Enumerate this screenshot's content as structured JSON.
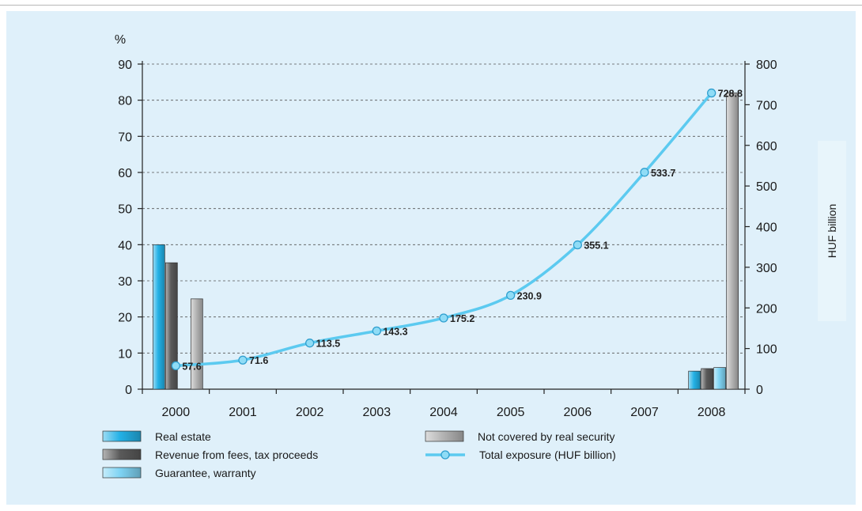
{
  "chart_data": {
    "type": "bar",
    "categories": [
      "2000",
      "2001",
      "2002",
      "2003",
      "2004",
      "2005",
      "2006",
      "2007",
      "2008"
    ],
    "series": [
      {
        "name": "Real estate",
        "axis": "left",
        "color": "#23b1e6",
        "values": [
          40,
          null,
          null,
          null,
          null,
          null,
          null,
          null,
          5
        ]
      },
      {
        "name": "Revenue from fees, tax proceeds",
        "axis": "left",
        "color": "#5a5a5a",
        "values": [
          35,
          null,
          null,
          null,
          null,
          null,
          null,
          null,
          5.7
        ]
      },
      {
        "name": "Guarantee, warranty",
        "axis": "left",
        "color": "#7fd4f4",
        "values": [
          null,
          null,
          null,
          null,
          null,
          null,
          null,
          null,
          6
        ]
      },
      {
        "name": "Not covered by real security",
        "axis": "left",
        "color": "#b4b4b4",
        "values": [
          25,
          null,
          null,
          null,
          null,
          null,
          null,
          null,
          82
        ]
      },
      {
        "name": "Total exposure (HUF billion)",
        "type": "line",
        "axis": "right",
        "color": "#5ccaf0",
        "values": [
          57.6,
          71.6,
          113.5,
          143.3,
          175.2,
          230.9,
          355.1,
          533.7,
          728.8
        ],
        "labels": [
          "57.6",
          "71.6",
          "113.5",
          "143.3",
          "175.2",
          "230.9",
          "355.1",
          "533.7",
          "728.8"
        ]
      }
    ],
    "left_axis": {
      "unit_label": "%",
      "ylim": [
        0,
        90
      ],
      "ticks": [
        "0",
        "10",
        "20",
        "30",
        "40",
        "50",
        "60",
        "70",
        "80",
        "90"
      ]
    },
    "right_axis": {
      "ylabel": "HUF billion",
      "ylim": [
        0,
        800
      ],
      "ticks": [
        "0",
        "100",
        "200",
        "300",
        "400",
        "500",
        "600",
        "700",
        "800"
      ]
    },
    "grid": "horizontal dashed",
    "legend_position": "bottom"
  }
}
